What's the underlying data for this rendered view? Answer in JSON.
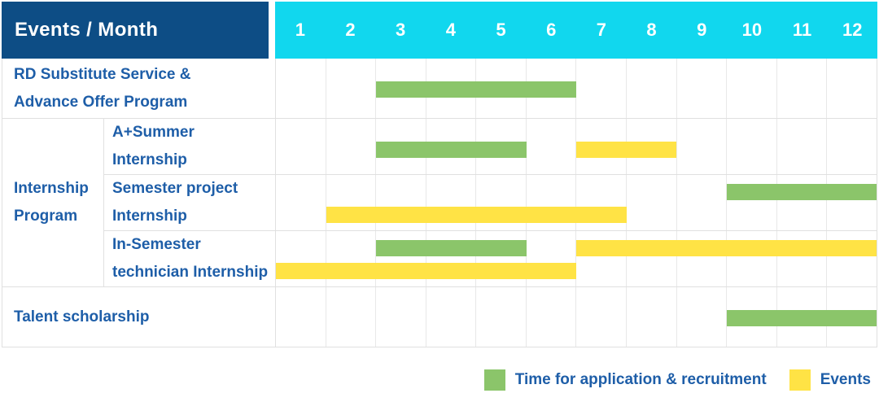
{
  "header": {
    "events_month_label": "Events / Month",
    "months": [
      "1",
      "2",
      "3",
      "4",
      "5",
      "6",
      "7",
      "8",
      "9",
      "10",
      "11",
      "12"
    ]
  },
  "legend": {
    "items": [
      {
        "key": "green",
        "label": "Time for application & recruitment"
      },
      {
        "key": "yellow",
        "label": "Events"
      }
    ]
  },
  "colors": {
    "header_bg": "#0d4d85",
    "months_bg": "#11d7ee",
    "green": "#8bc56a",
    "yellow": "#ffe345",
    "label_text": "#1e5ea8",
    "grid_line": "#e8e8e8",
    "row_line": "#e0e0e0"
  },
  "chart_data": {
    "type": "gantt",
    "x_unit": "month",
    "x_range": [
      1,
      12
    ],
    "legend_series": [
      "Time for application & recruitment",
      "Events"
    ],
    "rows": [
      {
        "group": "",
        "label": "RD Substitute Service & Advance Offer Program",
        "label_lines": [
          "RD Substitute Service &",
          "Advance Offer Program"
        ],
        "bars": [
          {
            "series": "Time for application & recruitment",
            "color": "green",
            "start_month": 3,
            "end_month": 6,
            "line": "mid"
          }
        ]
      },
      {
        "group": "Internship Program",
        "group_lines": [
          "Internship",
          "Program"
        ],
        "label": "A+Summer Internship",
        "label_lines": [
          "A+Summer",
          "Internship"
        ],
        "bars": [
          {
            "series": "Time for application & recruitment",
            "color": "green",
            "start_month": 3,
            "end_month": 5,
            "line": "mid"
          },
          {
            "series": "Events",
            "color": "yellow",
            "start_month": 7,
            "end_month": 8,
            "line": "mid"
          }
        ]
      },
      {
        "group": "Internship Program",
        "label": "Semester project Internship",
        "label_lines": [
          "Semester project",
          "Internship"
        ],
        "bars": [
          {
            "series": "Time for application & recruitment",
            "color": "green",
            "start_month": 10,
            "end_month": 12,
            "line": "top"
          },
          {
            "series": "Events",
            "color": "yellow",
            "start_month": 2,
            "end_month": 7,
            "line": "bottom"
          }
        ]
      },
      {
        "group": "Internship Program",
        "label": "In-Semester technician Internship",
        "label_lines": [
          "In-Semester",
          "technician Internship"
        ],
        "bars": [
          {
            "series": "Time for application & recruitment",
            "color": "green",
            "start_month": 3,
            "end_month": 5,
            "line": "top"
          },
          {
            "series": "Events",
            "color": "yellow",
            "start_month": 7,
            "end_month": 12,
            "line": "top"
          },
          {
            "series": "Events",
            "color": "yellow",
            "start_month": 1,
            "end_month": 6,
            "line": "bottom"
          }
        ]
      },
      {
        "group": "",
        "label": "Talent scholarship",
        "label_lines": [
          "Talent scholarship"
        ],
        "bars": [
          {
            "series": "Time for application & recruitment",
            "color": "green",
            "start_month": 10,
            "end_month": 12,
            "line": "mid"
          }
        ]
      }
    ]
  }
}
